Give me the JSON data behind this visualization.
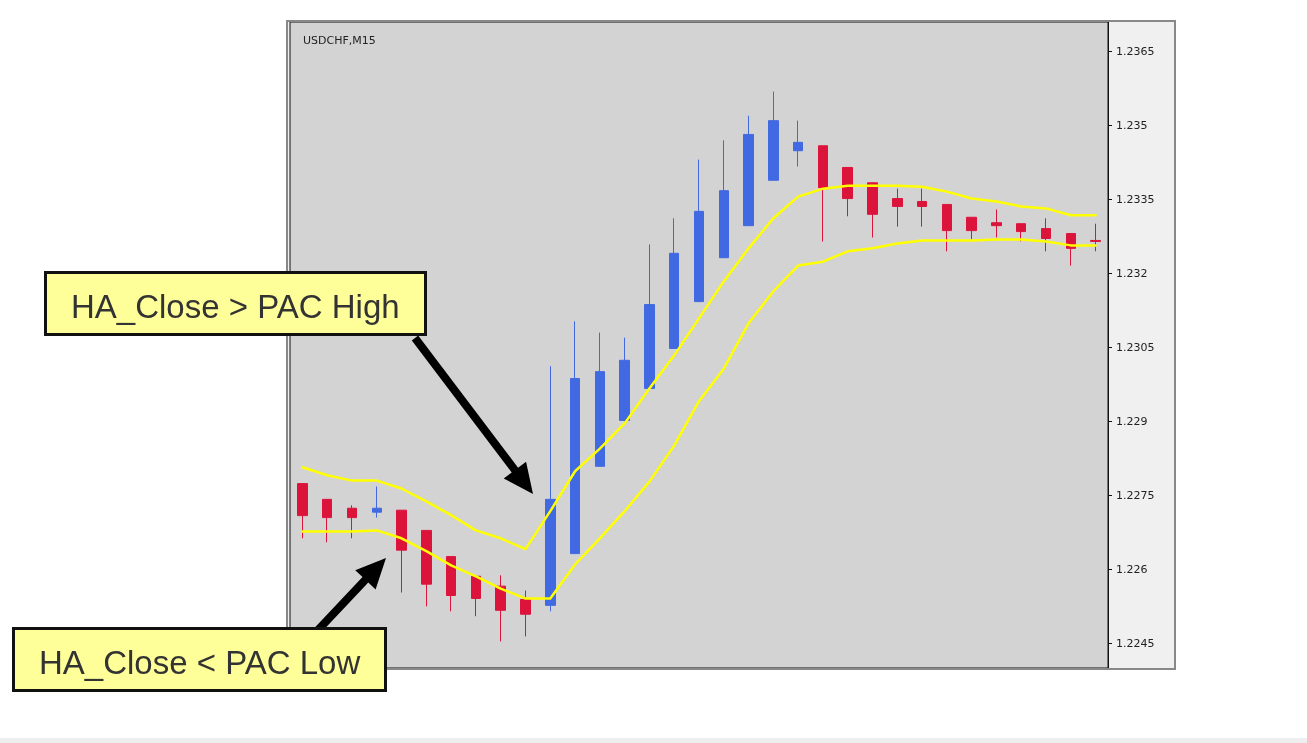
{
  "chart_data": {
    "type": "candlestick",
    "title": "USDCHF,M15",
    "categories": [
      null,
      null,
      null,
      null,
      null,
      null,
      null,
      null,
      null,
      null,
      null,
      null,
      null,
      null,
      null,
      null,
      null,
      null,
      null,
      null,
      null,
      null,
      null,
      null,
      null,
      null,
      null,
      null,
      null,
      null,
      null,
      null,
      null
    ],
    "ohlc": [
      [
        1.22774,
        1.22774,
        1.22663,
        1.22709
      ],
      [
        1.22742,
        1.22742,
        1.22655,
        1.22705
      ],
      [
        1.22724,
        1.2273,
        1.22663,
        1.22705
      ],
      [
        1.22716,
        1.22768,
        1.22705,
        1.22724
      ],
      [
        1.2272,
        1.2272,
        1.22553,
        1.22639
      ],
      [
        1.22679,
        1.22679,
        1.22525,
        1.2257
      ],
      [
        1.22626,
        1.22626,
        1.22515,
        1.22547
      ],
      [
        1.22586,
        1.22586,
        1.22505,
        1.22541
      ],
      [
        1.22566,
        1.22588,
        1.22454,
        1.22517
      ],
      [
        1.22539,
        1.22557,
        1.22464,
        1.22509
      ],
      [
        1.22527,
        1.23012,
        1.22515,
        1.22742
      ],
      [
        1.22632,
        1.23103,
        1.22632,
        1.22987
      ],
      [
        1.22809,
        1.2308,
        1.22809,
        1.23001
      ],
      [
        1.22902,
        1.2307,
        1.229,
        1.23024
      ],
      [
        1.22967,
        1.23259,
        1.22967,
        1.23137
      ],
      [
        1.23048,
        1.23312,
        1.23048,
        1.23241
      ],
      [
        1.23143,
        1.23431,
        1.23143,
        1.23326
      ],
      [
        1.23232,
        1.2347,
        1.23232,
        1.23368
      ],
      [
        1.23297,
        1.2352,
        1.23297,
        1.23482
      ],
      [
        1.23389,
        1.23569,
        1.23389,
        1.2351
      ],
      [
        1.23449,
        1.2351,
        1.23417,
        1.23466
      ],
      [
        1.23459,
        1.23459,
        1.23265,
        1.23374
      ],
      [
        1.23415,
        1.23415,
        1.23316,
        1.23352
      ],
      [
        1.23384,
        1.23384,
        1.23273,
        1.2332
      ],
      [
        1.23352,
        1.23372,
        1.23295,
        1.23336
      ],
      [
        1.23346,
        1.23372,
        1.23295,
        1.23336
      ],
      [
        1.2334,
        1.2334,
        1.23245,
        1.23287
      ],
      [
        1.23314,
        1.23314,
        1.23269,
        1.23287
      ],
      [
        1.23303,
        1.2333,
        1.23273,
        1.23297
      ],
      [
        1.23301,
        1.23301,
        1.23265,
        1.23285
      ],
      [
        1.23291,
        1.23312,
        1.23245,
        1.23271
      ],
      [
        1.23281,
        1.23281,
        1.23216,
        1.23251
      ],
      [
        1.23267,
        1.23301,
        1.23245,
        1.23265
      ]
    ],
    "colors": [
      "#dc143c",
      "#dc143c",
      "#dc143c",
      "#4169e1",
      "#dc143c",
      "#dc143c",
      "#dc143c",
      "#dc143c",
      "#dc143c",
      "#dc143c",
      "#4169e1",
      "#4169e1",
      "#4169e1",
      "#4169e1",
      "#4169e1",
      "#4169e1",
      "#4169e1",
      "#4169e1",
      "#4169e1",
      "#4169e1",
      "#4169e1",
      "#dc143c",
      "#dc143c",
      "#dc143c",
      "#dc143c",
      "#dc143c",
      "#dc143c",
      "#dc143c",
      "#dc143c",
      "#dc143c",
      "#dc143c",
      "#dc143c",
      "#dc143c"
    ],
    "series": [
      {
        "type": "line",
        "color": "#ffff00",
        "values": [
          1.22807,
          1.22791,
          1.2278,
          1.2278,
          1.22764,
          1.22738,
          1.2271,
          1.22679,
          1.22663,
          1.22641,
          1.22718,
          1.22799,
          1.22845,
          1.22896,
          1.22967,
          1.23034,
          1.23109,
          1.23184,
          1.23251,
          1.23312,
          1.23356,
          1.23372,
          1.23378,
          1.23378,
          1.23378,
          1.23376,
          1.23366,
          1.23352,
          1.23346,
          1.23336,
          1.23332,
          1.23318,
          1.23318
        ]
      },
      {
        "type": "line",
        "color": "#ffff00",
        "values": [
          1.22677,
          1.22677,
          1.22677,
          1.22679,
          1.22663,
          1.22637,
          1.22608,
          1.22586,
          1.22561,
          1.22541,
          1.22541,
          1.2261,
          1.22663,
          1.22718,
          1.22778,
          1.22851,
          1.22941,
          1.23007,
          1.23099,
          1.23164,
          1.23216,
          1.23224,
          1.23245,
          1.23251,
          1.23261,
          1.23267,
          1.23267,
          1.23267,
          1.23269,
          1.23269,
          1.23265,
          1.23257,
          1.23257
        ]
      }
    ],
    "ylim": [
      1.224,
      1.2371
    ],
    "yticks": [
      1.2245,
      1.226,
      1.2275,
      1.229,
      1.2305,
      1.232,
      1.2335,
      1.235,
      1.2365
    ],
    "tick_labels": "y",
    "grid": false,
    "marker": "none",
    "line_style": "solid",
    "annotations": [
      "HA_Close > PAC High",
      "HA_Close < PAC Low"
    ]
  }
}
